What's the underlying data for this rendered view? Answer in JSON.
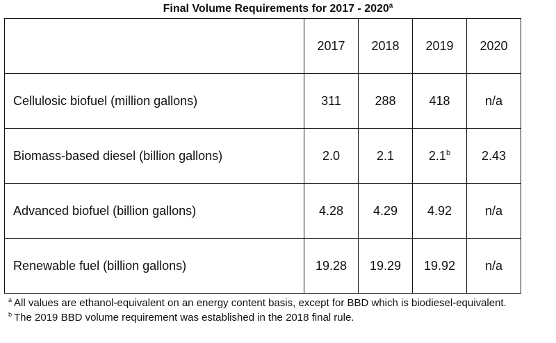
{
  "title": {
    "text": "Final Volume Requirements for 2017 - 2020",
    "superscript": "a"
  },
  "table": {
    "years": [
      "2017",
      "2018",
      "2019",
      "2020"
    ],
    "rows": [
      {
        "label": "Cellulosic biofuel (million gallons)",
        "values": [
          "311",
          "288",
          "418",
          "n/a"
        ],
        "value_superscripts": [
          "",
          "",
          "",
          ""
        ]
      },
      {
        "label": "Biomass-based diesel (billion gallons)",
        "values": [
          "2.0",
          "2.1",
          "2.1",
          "2.43"
        ],
        "value_superscripts": [
          "",
          "",
          "b",
          ""
        ]
      },
      {
        "label": "Advanced biofuel (billion gallons)",
        "values": [
          "4.28",
          "4.29",
          "4.92",
          "n/a"
        ],
        "value_superscripts": [
          "",
          "",
          "",
          ""
        ]
      },
      {
        "label": "Renewable fuel (billion gallons)",
        "values": [
          "19.28",
          "19.29",
          "19.92",
          "n/a"
        ],
        "value_superscripts": [
          "",
          "",
          "",
          ""
        ]
      }
    ]
  },
  "footnotes": [
    {
      "marker": "a",
      "text": "All values are ethanol-equivalent on an energy content basis, except for BBD which is biodiesel-equivalent."
    },
    {
      "marker": "b",
      "text": "The 2019 BBD volume requirement was established in the 2018 final rule."
    }
  ]
}
